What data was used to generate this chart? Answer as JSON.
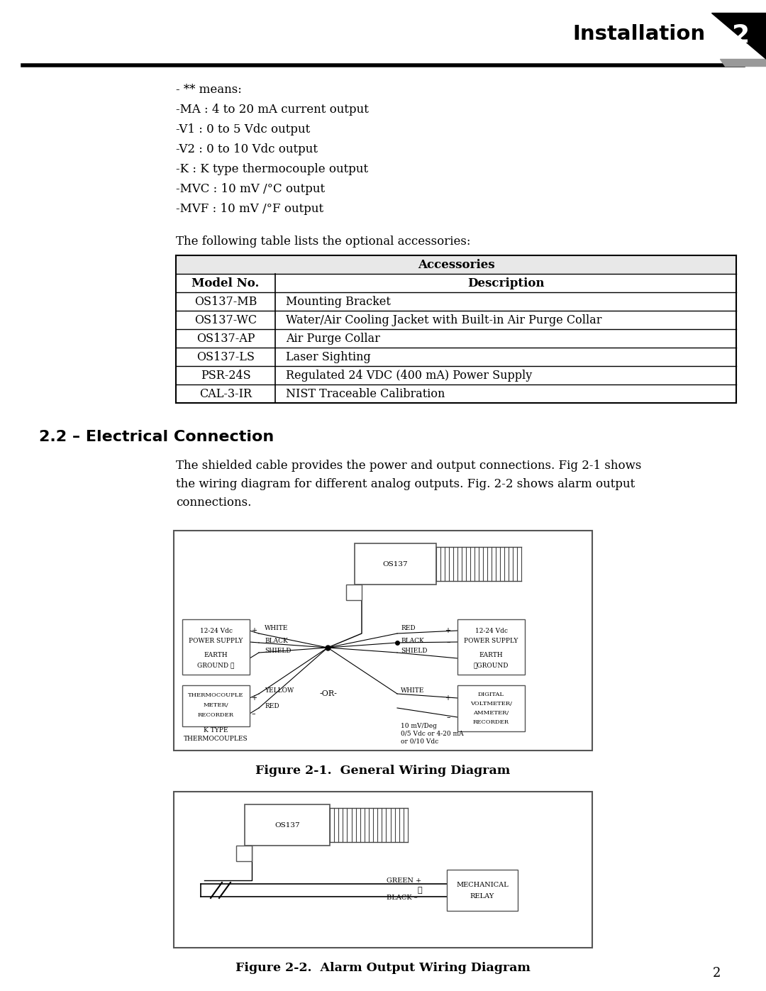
{
  "bg_color": "#ffffff",
  "header_text": "Installation",
  "header_num": "2",
  "bullet_lines": [
    "- ** means:",
    "-MA : 4 to 20 mA current output",
    "-V1 : 0 to 5 Vdc output",
    "-V2 : 0 to 10 Vdc output",
    "-K : K type thermocouple output",
    "-MVC : 10 mV /°C output",
    "-MVF : 10 mV /°F output"
  ],
  "table_intro": "The following table lists the optional accessories:",
  "table_header1": "Accessories",
  "table_col1": "Model No.",
  "table_col2": "Description",
  "table_rows": [
    [
      "OS137-MB",
      "Mounting Bracket"
    ],
    [
      "OS137-WC",
      "Water/Air Cooling Jacket with Built-in Air Purge Collar"
    ],
    [
      "OS137-AP",
      "Air Purge Collar"
    ],
    [
      "OS137-LS",
      "Laser Sighting"
    ],
    [
      "PSR-24S",
      "Regulated 24 VDC (400 mA) Power Supply"
    ],
    [
      "CAL-3-IR",
      "NIST Traceable Calibration"
    ]
  ],
  "section_title": "2.2 – Electrical Connection",
  "section_text_lines": [
    "The shielded cable provides the power and output connections. Fig 2-1 shows",
    "the wiring diagram for different analog outputs. Fig. 2-2 shows alarm output",
    "connections."
  ],
  "fig1_caption": "Figure 2-1.  General Wiring Diagram",
  "fig2_caption": "Figure 2-2.  Alarm Output Wiring Diagram",
  "page_num": "2"
}
